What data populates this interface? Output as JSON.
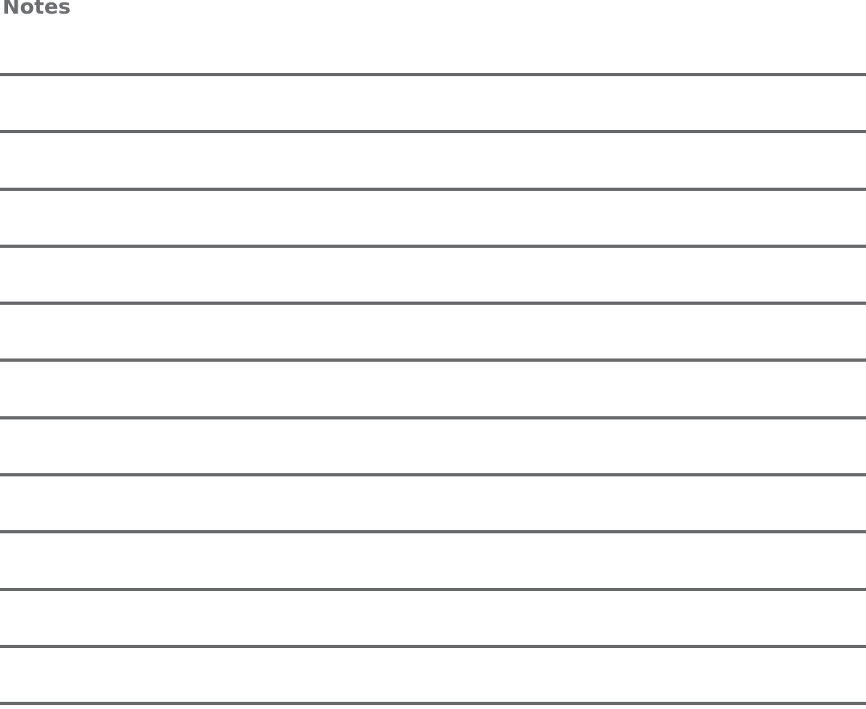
{
  "page": {
    "title": "Notes",
    "background_color": "#ffffff",
    "title_color": "#6d6e71"
  },
  "ruled_lines": {
    "count": 12,
    "color": "#6a6b6d"
  }
}
